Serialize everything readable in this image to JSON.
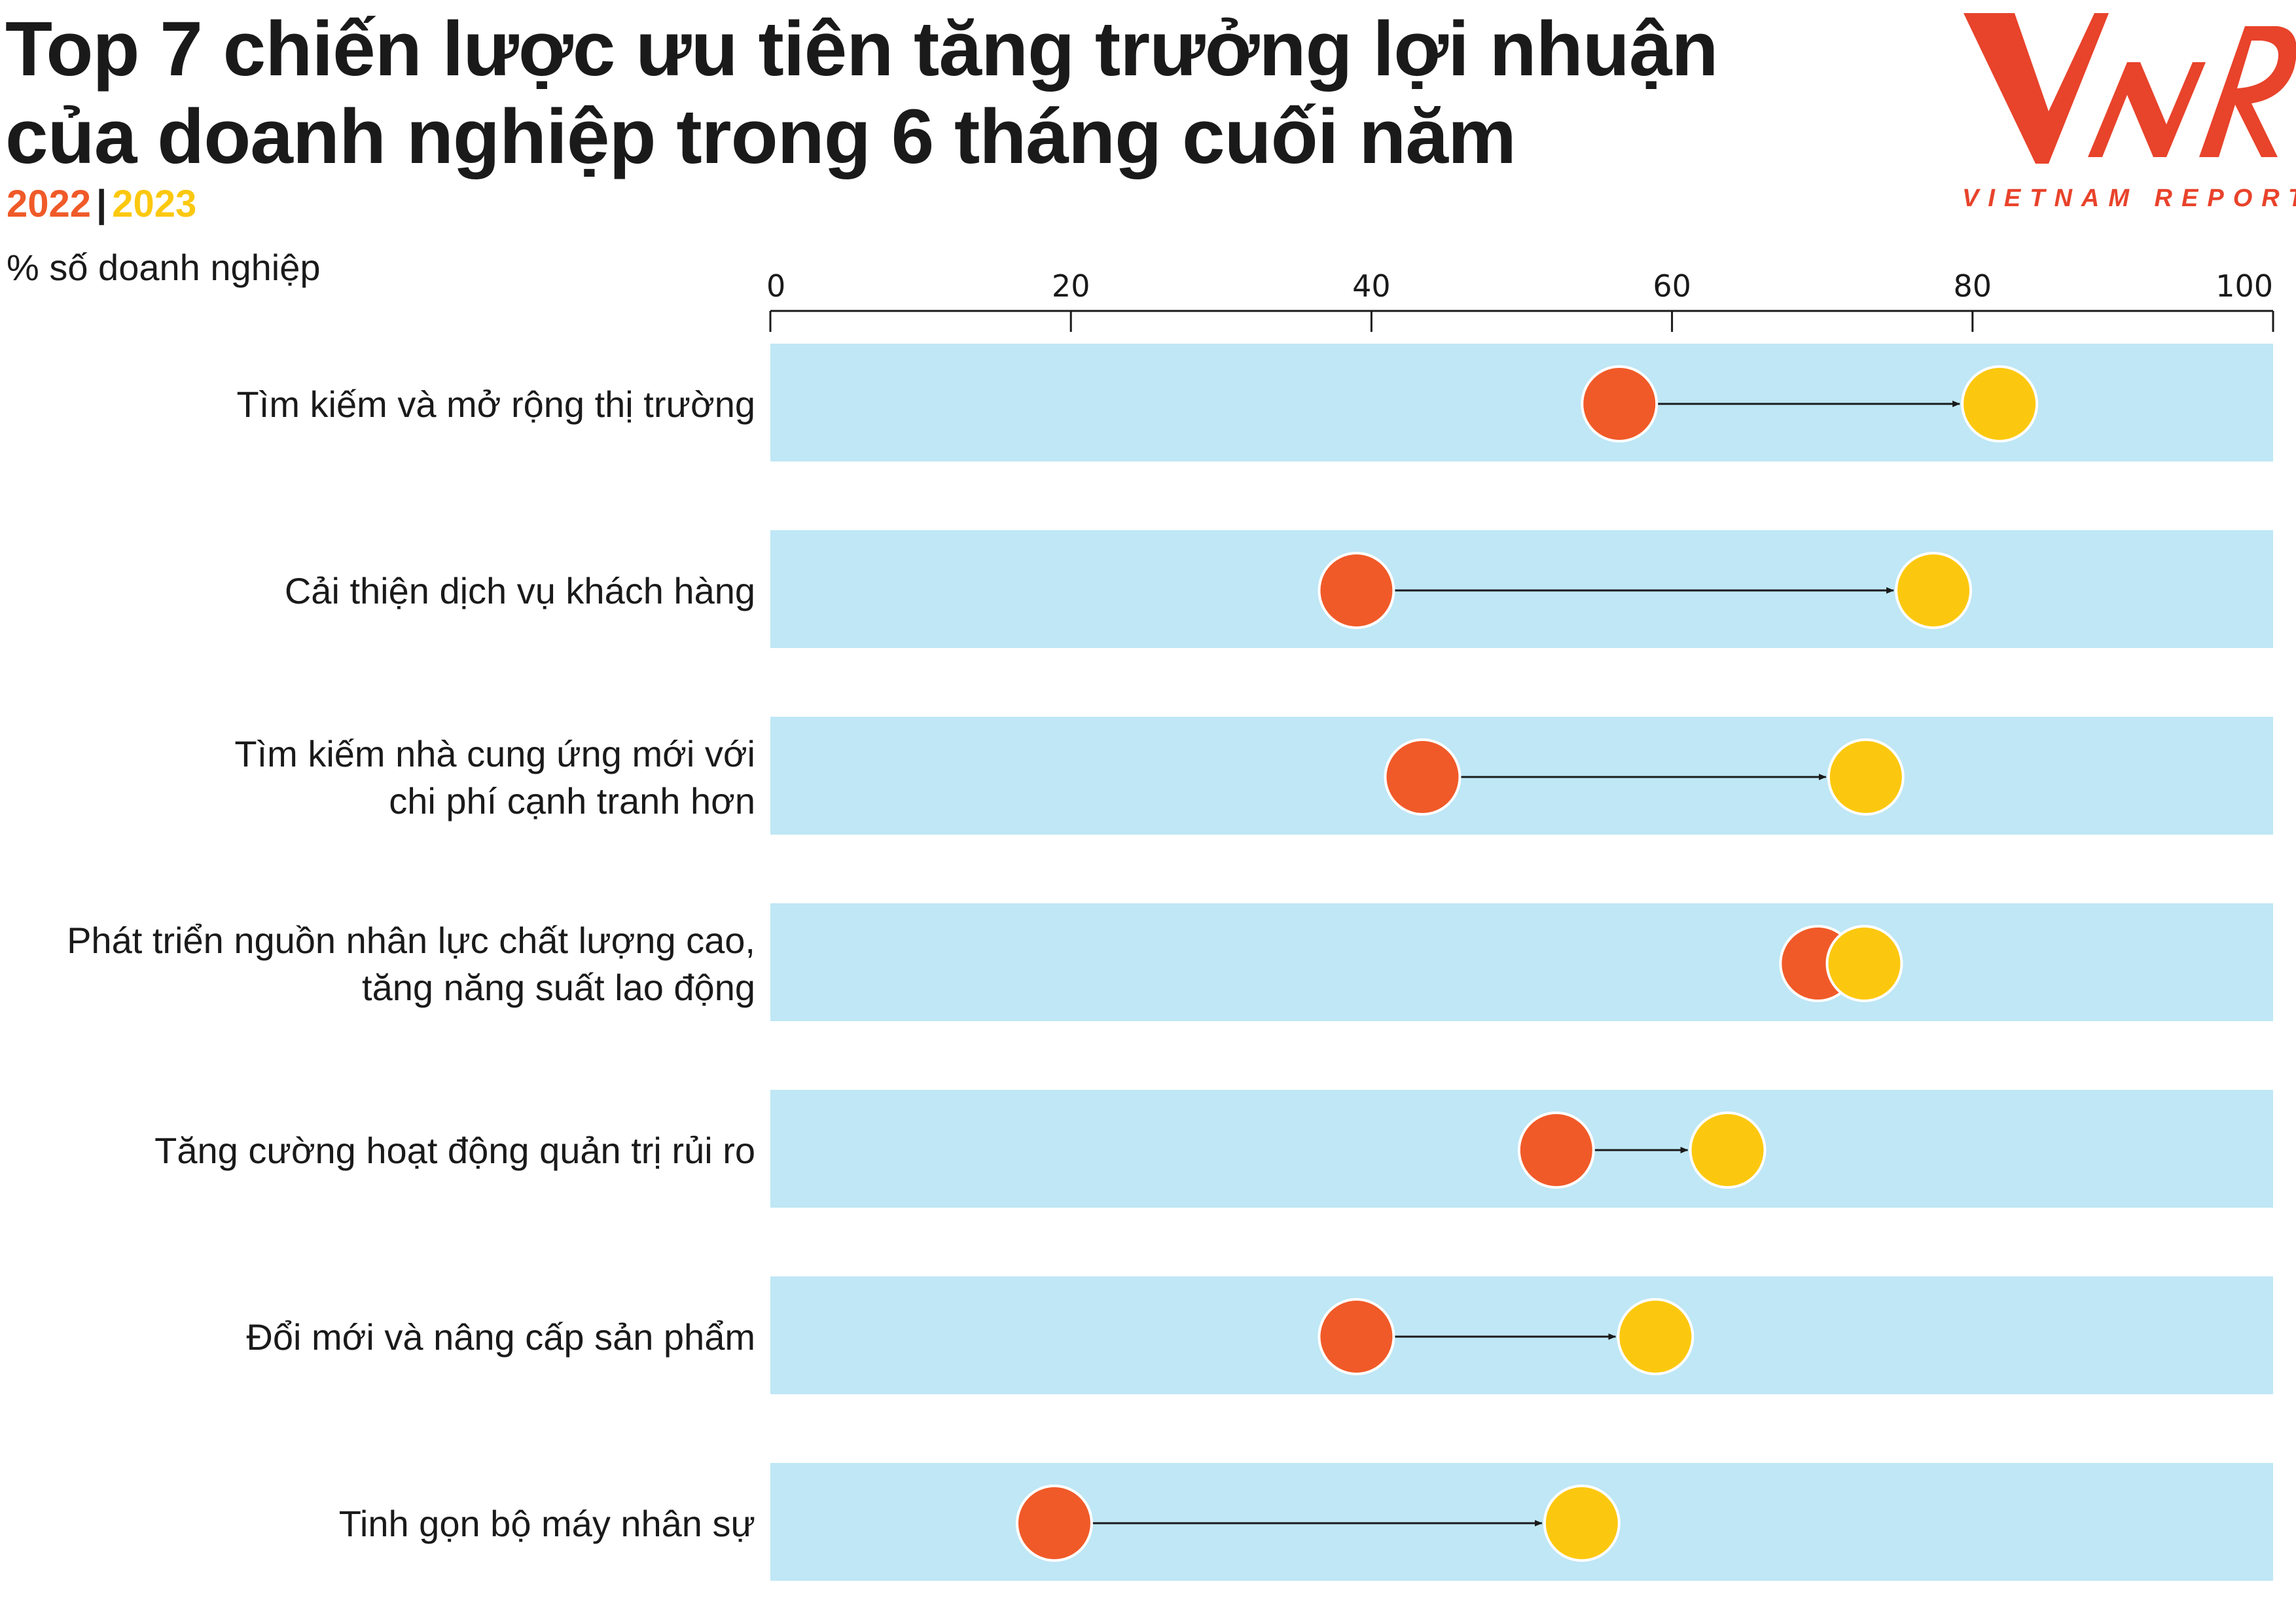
{
  "title": "Top 7 chiến lược ưu tiên tăng trưởng lợi nhuận của doanh nghiệp trong 6 tháng cuối năm",
  "legend": {
    "label_2022": "2022",
    "separator": "|",
    "label_2023": "2023"
  },
  "unit_label": "% số doanh nghiệp",
  "logo": {
    "brand_text": "VIETNAM REPORT",
    "logo_letters": "VNR"
  },
  "colors": {
    "c2022": "#f05a28",
    "c2023": "#fcc80f",
    "band": "#bfe7f5",
    "text": "#1a1a1a"
  },
  "chart_data": {
    "type": "dumbbell",
    "xlim": [
      0,
      100
    ],
    "ticks": [
      "0",
      "20",
      "40",
      "60",
      "80",
      "100"
    ],
    "tick_values": [
      0,
      20,
      40,
      60,
      80,
      100
    ],
    "series_names": [
      "2022",
      "2023"
    ],
    "categories": [
      {
        "label": [
          "Tìm kiếm và mở rộng thị trường"
        ],
        "v2022": 56.5,
        "v2023": 81.8
      },
      {
        "label": [
          "Cải thiện dịch vụ khách hàng"
        ],
        "v2022": 39.0,
        "v2023": 77.4
      },
      {
        "label": [
          "Tìm kiếm nhà cung ứng mới với",
          "chi phí cạnh tranh hơn"
        ],
        "v2022": 43.4,
        "v2023": 72.9
      },
      {
        "label": [
          "Phát triển nguồn nhân lực chất lượng cao,",
          "tăng năng suất lao động"
        ],
        "v2022": 69.7,
        "v2023": 72.8
      },
      {
        "label": [
          "Tăng cường hoạt động quản trị rủi ro"
        ],
        "v2022": 52.3,
        "v2023": 63.7
      },
      {
        "label": [
          "Đổi mới và nâng cấp sản phẩm"
        ],
        "v2022": 39.0,
        "v2023": 58.9
      },
      {
        "label": [
          "Tinh gọn bộ máy nhân sự"
        ],
        "v2022": 18.9,
        "v2023": 54.0
      }
    ]
  }
}
